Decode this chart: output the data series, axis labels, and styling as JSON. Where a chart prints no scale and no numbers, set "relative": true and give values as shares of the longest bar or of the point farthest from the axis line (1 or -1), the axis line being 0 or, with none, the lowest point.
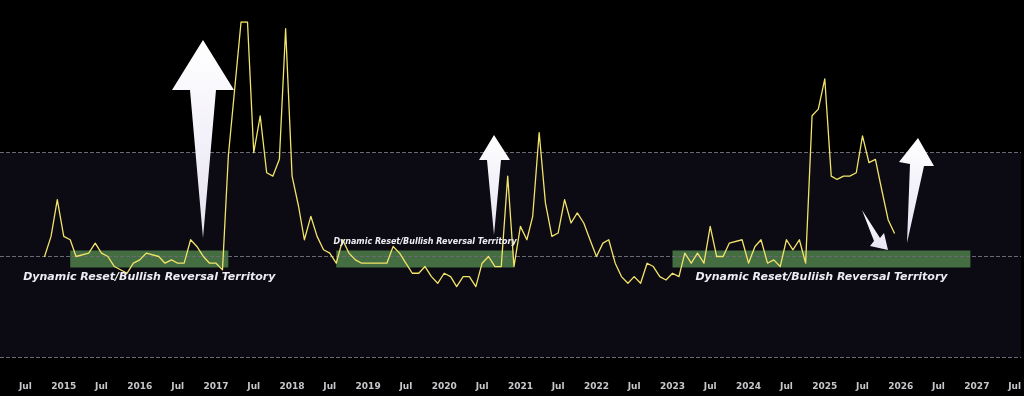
{
  "chart_data": {
    "type": "line",
    "relative": true,
    "grid": false,
    "marker": "none",
    "line_style": "solid",
    "xlim": [
      "2014-03",
      "2027-08"
    ],
    "xticks": [
      {
        "value": "2014-07",
        "label": "Jul"
      },
      "2015",
      {
        "value": "2015-07",
        "label": "Jul"
      },
      "2016",
      {
        "value": "2016-07",
        "label": "Jul"
      },
      "2017",
      {
        "value": "2017-07",
        "label": "Jul"
      },
      "2018",
      {
        "value": "2018-07",
        "label": "Jul"
      },
      "2019",
      {
        "value": "2019-07",
        "label": "Jul"
      },
      "2020",
      {
        "value": "2020-07",
        "label": "Jul"
      },
      "2021",
      {
        "value": "2021-07",
        "label": "Jul"
      },
      "2022",
      {
        "value": "2022-07",
        "label": "Jul"
      },
      "2023",
      {
        "value": "2023-07",
        "label": "Jul"
      },
      "2024",
      {
        "value": "2024-07",
        "label": "Jul"
      },
      "2025",
      {
        "value": "2025-07",
        "label": "Jul"
      },
      "2026",
      {
        "value": "2026-07",
        "label": "Jul"
      },
      "2027",
      {
        "value": "2027-07",
        "label": "Jul"
      }
    ],
    "tick_labels": "x",
    "series": [
      {
        "color": "#f2e46a",
        "x": [
          "2014-10",
          "2014-11",
          "2014-12",
          "2015-01",
          "2015-02",
          "2015-03",
          "2015-05",
          "2015-06",
          "2015-07",
          "2015-08",
          "2015-09",
          "2015-11",
          "2015-12",
          "2016-01",
          "2016-02",
          "2016-04",
          "2016-05",
          "2016-06",
          "2016-07",
          "2016-08",
          "2016-09",
          "2016-10",
          "2016-11",
          "2016-12",
          "2017-01",
          "2017-02",
          "2017-03",
          "2017-05",
          "2017-06",
          "2017-07",
          "2017-08",
          "2017-09",
          "2017-10",
          "2017-11",
          "2017-12",
          "2018-01",
          "2018-02",
          "2018-03",
          "2018-04",
          "2018-05",
          "2018-06",
          "2018-07",
          "2018-08",
          "2018-09",
          "2018-10",
          "2018-11",
          "2018-12",
          "2019-01",
          "2019-02",
          "2019-04",
          "2019-05",
          "2019-06",
          "2019-07",
          "2019-08",
          "2019-09",
          "2019-10",
          "2019-11",
          "2019-12",
          "2020-01",
          "2020-02",
          "2020-03",
          "2020-04",
          "2020-05",
          "2020-06",
          "2020-07",
          "2020-08",
          "2020-09",
          "2020-10",
          "2020-11",
          "2020-12",
          "2021-01",
          "2021-02",
          "2021-03",
          "2021-04",
          "2021-05",
          "2021-06",
          "2021-07",
          "2021-08",
          "2021-09",
          "2021-10",
          "2021-11",
          "2021-12",
          "2022-01",
          "2022-02",
          "2022-03",
          "2022-04",
          "2022-05",
          "2022-06",
          "2022-07",
          "2022-08",
          "2022-09",
          "2022-10",
          "2022-11",
          "2022-12",
          "2023-01",
          "2023-02",
          "2023-03",
          "2023-04",
          "2023-05",
          "2023-06",
          "2023-07",
          "2023-08",
          "2023-09",
          "2023-10",
          "2023-12",
          "2024-01",
          "2024-02",
          "2024-03",
          "2024-04",
          "2024-05",
          "2024-06",
          "2024-07",
          "2024-08",
          "2024-09",
          "2024-10",
          "2024-11",
          "2024-12",
          "2025-01",
          "2025-02",
          "2025-03",
          "2025-04",
          "2025-05",
          "2025-06",
          "2025-07",
          "2025-08",
          "2025-09",
          "2025-10",
          "2025-11",
          "2025-12"
        ],
        "values": [
          0.3,
          0.36,
          0.47,
          0.36,
          0.35,
          0.3,
          0.31,
          0.34,
          0.31,
          0.3,
          0.27,
          0.25,
          0.28,
          0.29,
          0.31,
          0.3,
          0.28,
          0.29,
          0.28,
          0.28,
          0.35,
          0.33,
          0.3,
          0.28,
          0.28,
          0.26,
          0.6,
          1.0,
          1.0,
          0.61,
          0.72,
          0.55,
          0.54,
          0.59,
          0.98,
          0.54,
          0.45,
          0.35,
          0.42,
          0.36,
          0.32,
          0.31,
          0.28,
          0.35,
          0.31,
          0.29,
          0.28,
          0.28,
          0.28,
          0.28,
          0.33,
          0.31,
          0.28,
          0.25,
          0.25,
          0.27,
          0.24,
          0.22,
          0.25,
          0.24,
          0.21,
          0.24,
          0.24,
          0.21,
          0.28,
          0.3,
          0.27,
          0.27,
          0.54,
          0.27,
          0.39,
          0.35,
          0.42,
          0.67,
          0.46,
          0.36,
          0.37,
          0.47,
          0.4,
          0.43,
          0.4,
          0.35,
          0.3,
          0.34,
          0.35,
          0.28,
          0.24,
          0.22,
          0.24,
          0.22,
          0.28,
          0.27,
          0.24,
          0.23,
          0.25,
          0.24,
          0.31,
          0.28,
          0.31,
          0.28,
          0.39,
          0.3,
          0.3,
          0.34,
          0.35,
          0.28,
          0.33,
          0.35,
          0.28,
          0.29,
          0.27,
          0.35,
          0.32,
          0.35,
          0.28,
          0.72,
          0.74,
          0.83,
          0.54,
          0.53,
          0.54,
          0.54,
          0.55,
          0.66,
          0.58,
          0.59,
          0.5,
          0.41,
          0.37
        ]
      }
    ],
    "ref_lines": [
      {
        "axis": "y",
        "value": 0.61,
        "label": null,
        "color": "#6a6a72",
        "line_style": "dashed"
      },
      {
        "axis": "y",
        "value": 0.3,
        "label": null,
        "color": "#6a6a72",
        "line_style": "dashed"
      },
      {
        "axis": "y",
        "value": 0,
        "label": null,
        "color": "#6a6a72",
        "line_style": "dashed"
      }
    ],
    "bands": [
      {
        "axis": "y",
        "from": 0,
        "to": 0.61,
        "label": null,
        "color": "#0c0a12"
      },
      {
        "axis": "x",
        "from": "2015-02",
        "to": "2017-03",
        "label": "Dynamic Reset/Bullish Reversal Territory",
        "color": "#4f7f4a"
      },
      {
        "axis": "x",
        "from": "2018-08",
        "to": "2020-12",
        "label": "Dynamic Reset/Bullish Reversal Territory",
        "color": "#4f7f4a"
      },
      {
        "axis": "x",
        "from": "2023-01",
        "to": "2026-12",
        "label": "Dynamic Reset/Buliish Reversal Territory",
        "color": "#4f7f4a"
      }
    ]
  }
}
